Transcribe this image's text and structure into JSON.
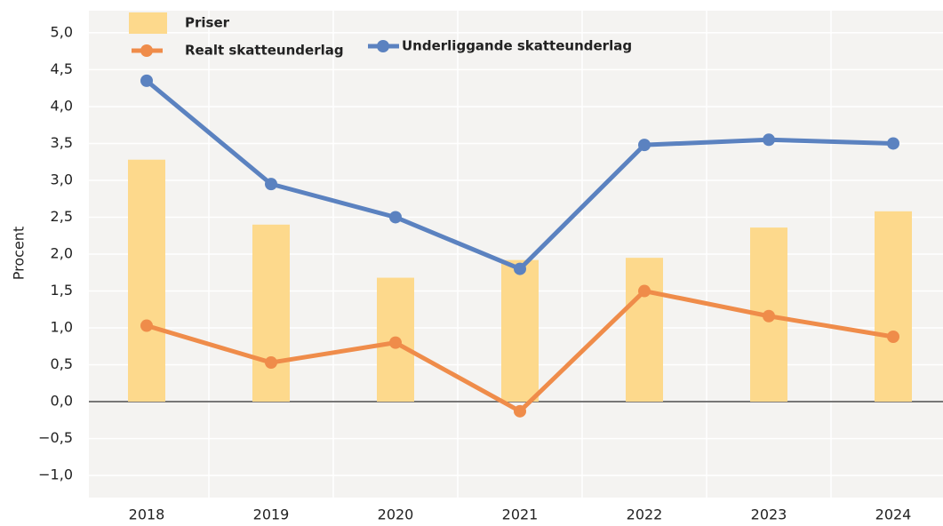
{
  "chart_data": {
    "type": "bar",
    "y_label": "Procent",
    "categories": [
      "2018",
      "2019",
      "2020",
      "2021",
      "2022",
      "2023",
      "2024"
    ],
    "series": [
      {
        "name": "Priser",
        "type": "bar",
        "color": "#fdd98c",
        "values": [
          3.28,
          2.4,
          1.68,
          1.92,
          1.95,
          2.36,
          2.58
        ]
      },
      {
        "name": "Realt skatteunderlag",
        "type": "line",
        "color": "#ef8c4a",
        "values": [
          1.03,
          0.53,
          0.8,
          -0.13,
          1.5,
          1.16,
          0.88
        ]
      },
      {
        "name": "Underliggande skatteunderlag",
        "type": "line",
        "color": "#5b82c0",
        "values": [
          4.35,
          2.95,
          2.5,
          1.8,
          3.48,
          3.55,
          3.5
        ]
      }
    ],
    "ylim": [
      -1.3,
      5.3
    ],
    "yticks": [
      {
        "value": 5,
        "label": "5,0"
      },
      {
        "value": 4.5,
        "label": "4,5"
      },
      {
        "value": 4,
        "label": "4,0"
      },
      {
        "value": 3.5,
        "label": "3,5"
      },
      {
        "value": 3,
        "label": "3,0"
      },
      {
        "value": 2.5,
        "label": "2,5"
      },
      {
        "value": 2,
        "label": "2,0"
      },
      {
        "value": 1.5,
        "label": "1,5"
      },
      {
        "value": 1,
        "label": "1,0"
      },
      {
        "value": 0.5,
        "label": "0,5"
      },
      {
        "value": 0,
        "label": "0,0"
      },
      {
        "value": -0.5,
        "label": "−0,5"
      },
      {
        "value": -1,
        "label": "−1,0"
      }
    ],
    "grid": true
  }
}
